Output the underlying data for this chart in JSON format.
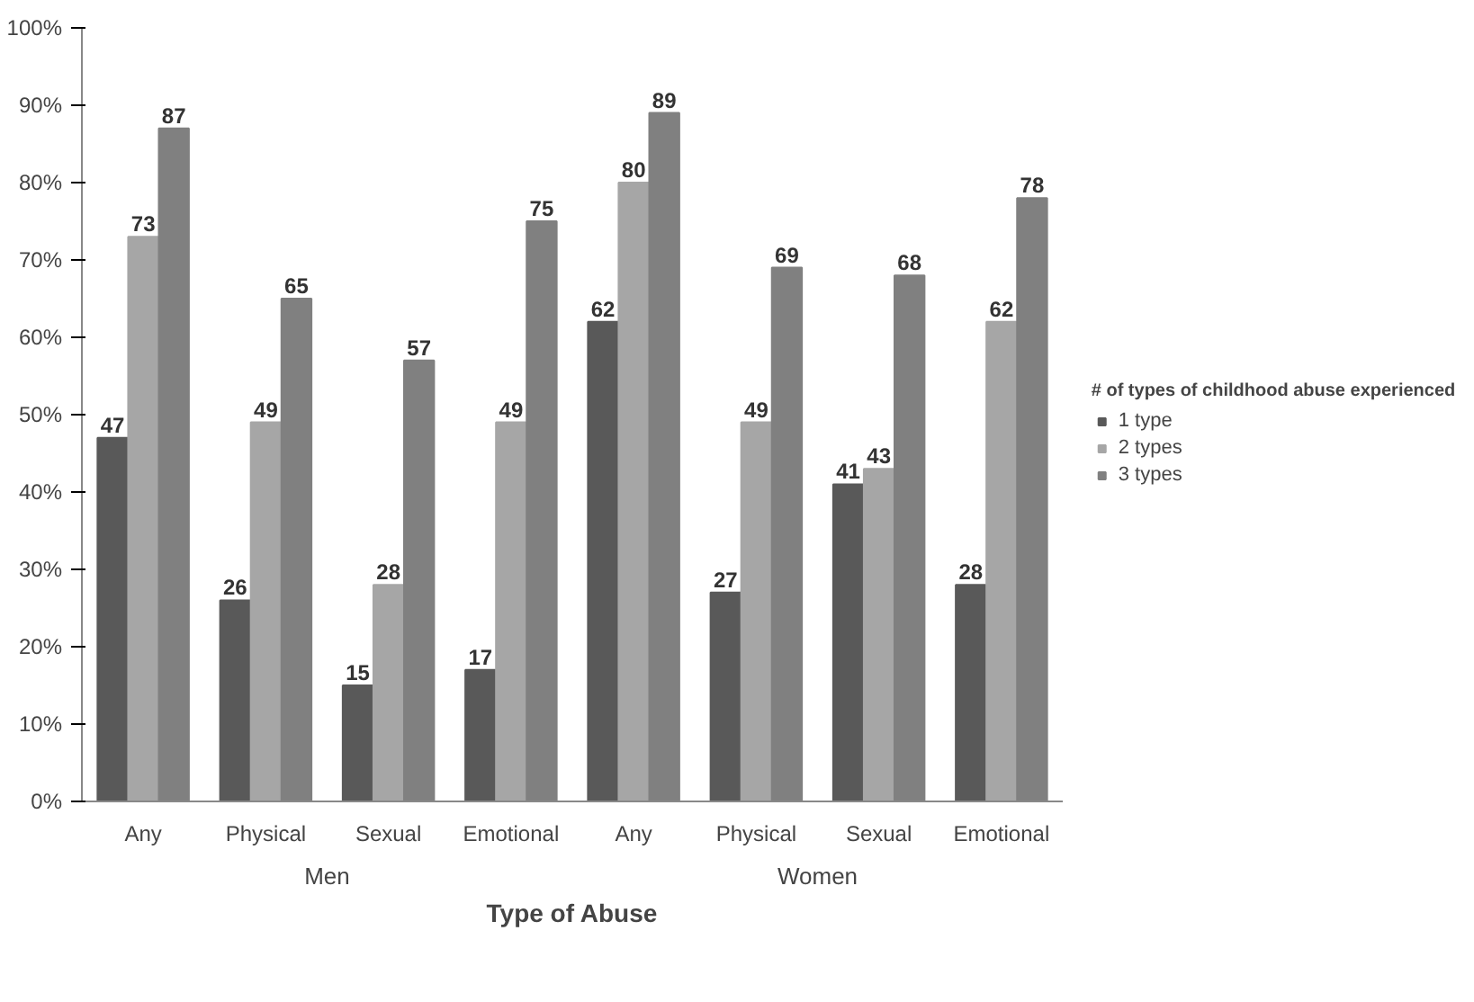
{
  "chart_data": {
    "type": "bar",
    "xlabel": "Type of Abuse",
    "legend_title": "# of types of childhood abuse experienced",
    "categories": [
      "Any",
      "Physical",
      "Sexual",
      "Emotional",
      "Any",
      "Physical",
      "Sexual",
      "Emotional"
    ],
    "series": [
      {
        "name": "1 type",
        "color": "#595959",
        "values": [
          47,
          26,
          15,
          17,
          62,
          27,
          41,
          28
        ]
      },
      {
        "name": "2 types",
        "color": "#a6a6a6",
        "values": [
          73,
          49,
          28,
          49,
          80,
          49,
          43,
          62
        ]
      },
      {
        "name": "3 types",
        "color": "#808080",
        "values": [
          87,
          65,
          57,
          75,
          89,
          69,
          68,
          78
        ]
      }
    ],
    "ylim": [
      0,
      100
    ],
    "yticks": [
      {
        "value": 0,
        "label": "0%"
      },
      {
        "value": 10,
        "label": "10%"
      },
      {
        "value": 20,
        "label": "20%"
      },
      {
        "value": 30,
        "label": "30%"
      },
      {
        "value": 40,
        "label": "40%"
      },
      {
        "value": 50,
        "label": "50%"
      },
      {
        "value": 60,
        "label": "60%"
      },
      {
        "value": 70,
        "label": "70%"
      },
      {
        "value": 80,
        "label": "80%"
      },
      {
        "value": 90,
        "label": "90%"
      },
      {
        "value": 100,
        "label": "100%"
      }
    ],
    "annotations": [
      "Men",
      "Women"
    ],
    "data_labels": true,
    "grid": false,
    "legend": "right"
  }
}
